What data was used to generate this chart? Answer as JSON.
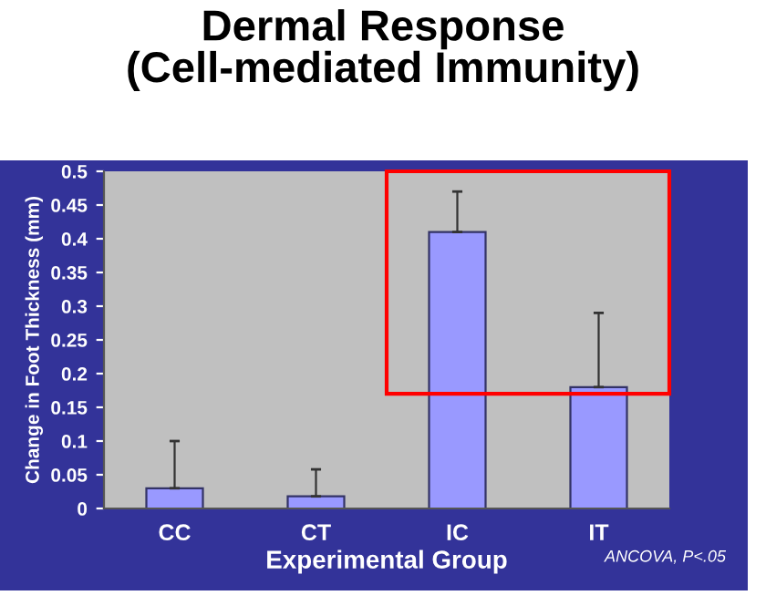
{
  "chart_data": {
    "type": "bar",
    "title": "Dermal Response\n(Cell-mediated Immunity)",
    "xlabel": "Experimental Group",
    "ylabel": "Change in Foot Thickness (mm)",
    "categories": [
      "CC",
      "CT",
      "IC",
      "IT"
    ],
    "values": [
      0.03,
      0.018,
      0.41,
      0.18
    ],
    "errors": [
      [
        0.03,
        0.1
      ],
      [
        0.018,
        0.058
      ],
      [
        0.41,
        0.47
      ],
      [
        0.18,
        0.29
      ]
    ],
    "color": "#9999ff",
    "ylim": [
      0,
      0.5
    ],
    "yticks": [
      0,
      0.05,
      0.1,
      0.15,
      0.2,
      0.25,
      0.3,
      0.35,
      0.4,
      0.45,
      0.5
    ],
    "annotations": [
      "ANCOVA, P<.05"
    ]
  }
}
